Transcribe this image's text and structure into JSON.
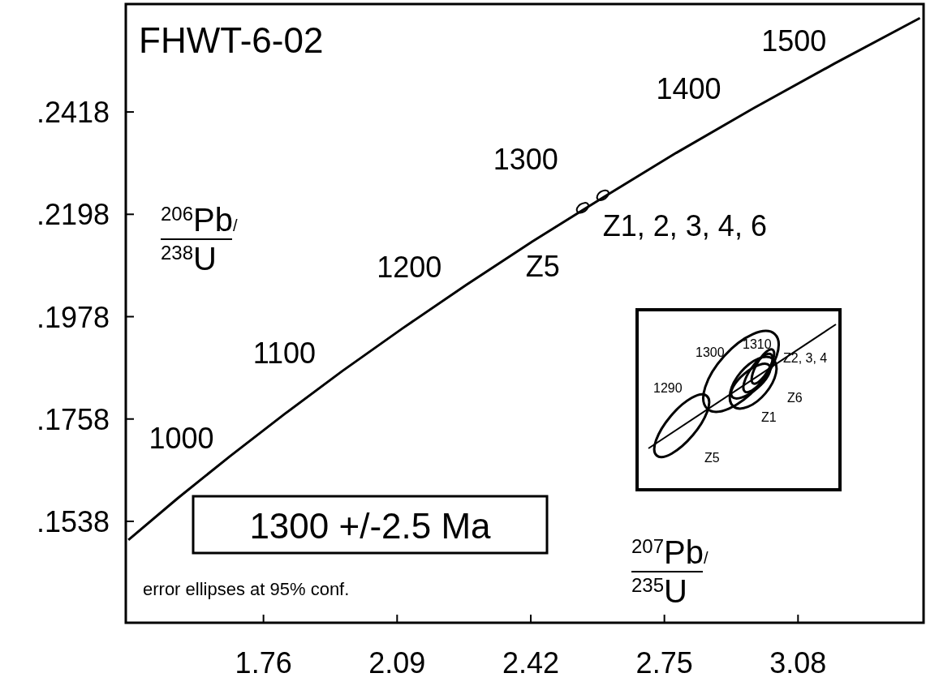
{
  "chart_data": [
    {
      "type": "line",
      "title": "FHWT-6-02",
      "xlabel": "$^{207}$Pb/$^{235}$U",
      "ylabel": "$^{206}$Pb/$^{238}$U",
      "x": [
        1.4264,
        1.5487,
        1.6774,
        1.8126,
        1.9545,
        2.1036,
        2.2603,
        2.425,
        2.598,
        2.779,
        2.97,
        3.17,
        3.381
      ],
      "series": [
        {
          "type": "line",
          "color": "#000000",
          "values": [
            0.1498,
            0.1588,
            0.1678,
            0.1769,
            0.1861,
            0.1953,
            0.2046,
            0.214,
            0.2234,
            0.233,
            0.2426,
            0.2522,
            0.262
          ]
        },
        {
          "type": "scatter",
          "color": "#000000",
          "marker": "circle",
          "x": [
            2.548,
            2.598
          ],
          "values": [
            0.2212,
            0.2239
          ]
        }
      ],
      "xlim": [
        1.42,
        3.39
      ],
      "xticks": [
        1.76,
        2.09,
        2.42,
        2.75,
        3.08
      ],
      "ylim": [
        0.132,
        0.265
      ],
      "yticks": [
        {
          "value": 0.2418,
          "label": ".2418"
        },
        {
          "value": 0.2198,
          "label": ".2198"
        },
        {
          "value": 0.1978,
          "label": ".1978"
        },
        {
          "value": 0.1758,
          "label": ".1758"
        },
        {
          "value": 0.1538,
          "label": ".1538"
        }
      ],
      "grid": false,
      "annotations": [
        {
          "text": "1000",
          "x": 1.6774,
          "y": 0.1678
        },
        {
          "text": "1100",
          "x": 1.9545,
          "y": 0.1861
        },
        {
          "text": "1200",
          "x": 2.2603,
          "y": 0.2046
        },
        {
          "text": "1300",
          "x": 2.598,
          "y": 0.2234
        },
        {
          "text": "1400",
          "x": 2.97,
          "y": 0.2426
        },
        {
          "text": "1500",
          "x": 3.17,
          "y": 0.2522
        },
        {
          "text": "Z1, 2, 3, 4, 6",
          "x": 2.598,
          "y": 0.2239
        },
        {
          "text": "Z5",
          "x": 2.548,
          "y": 0.2212
        },
        "1300 +/-2.5 Ma",
        "error ellipses at 95% conf."
      ]
    },
    {
      "type": "other",
      "annotations": [
        "1310",
        "1300",
        "1290",
        "Z2, 3, 4",
        "Z6",
        "Z1",
        "Z5"
      ]
    }
  ]
}
